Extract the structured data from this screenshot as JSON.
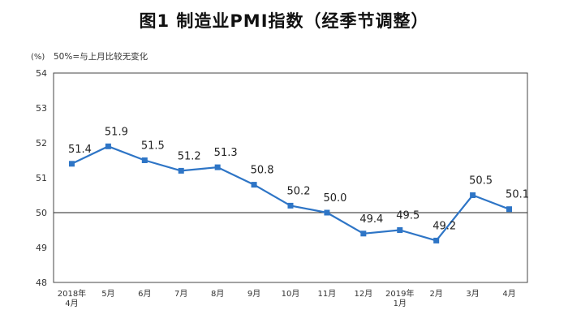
{
  "chart_data": {
    "type": "line",
    "title": "图1 制造业PMI指数（经季节调整）",
    "unit": "(%)",
    "note": "50%=与上月比较无变化",
    "categories": [
      [
        "2018年",
        "4月"
      ],
      [
        "5月"
      ],
      [
        "6月"
      ],
      [
        "7月"
      ],
      [
        "8月"
      ],
      [
        "9月"
      ],
      [
        "10月"
      ],
      [
        "11月"
      ],
      [
        "12月"
      ],
      [
        "2019年",
        "1月"
      ],
      [
        "2月"
      ],
      [
        "3月"
      ],
      [
        "4月"
      ]
    ],
    "series": [
      {
        "values": [
          51.4,
          51.9,
          51.5,
          51.2,
          51.3,
          50.8,
          50.2,
          50.0,
          49.4,
          49.5,
          49.2,
          50.5,
          50.1
        ],
        "labels": [
          "51.4",
          "51.9",
          "51.5",
          "51.2",
          "51.3",
          "50.8",
          "50.2",
          "50.0",
          "49.4",
          "49.5",
          "49.2",
          "50.5",
          "50.1"
        ],
        "color": "#2e75c6"
      }
    ],
    "ylim": [
      48,
      54
    ],
    "yticks": [
      48,
      49,
      50,
      51,
      52,
      53,
      54
    ],
    "reference_line": 50,
    "grid": false,
    "legend": "none"
  }
}
